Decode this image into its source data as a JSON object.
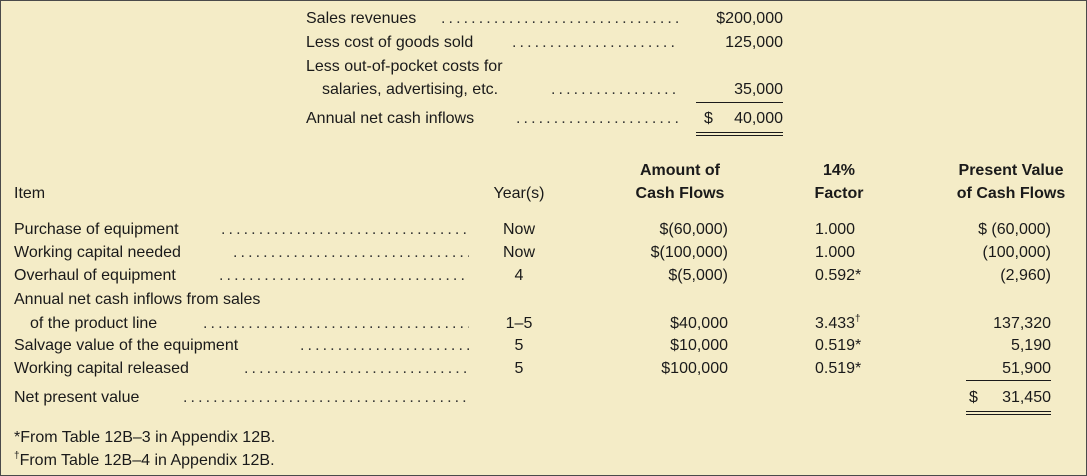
{
  "top": {
    "rows": [
      {
        "label": "Sales revenues",
        "value": "$200,000"
      },
      {
        "label": "Less cost of goods sold",
        "value": "125,000"
      },
      {
        "label": "Less out-of-pocket costs for",
        "label_cont": "salaries, advertising, etc.",
        "value": "35,000"
      },
      {
        "label": "Annual net cash inflows",
        "currency": "$",
        "value": "40,000"
      }
    ]
  },
  "table": {
    "headers": {
      "item": "Item",
      "years": "Year(s)",
      "amount_1": "Amount of",
      "amount_2": "Cash Flows",
      "factor_1": "14%",
      "factor_2": "Factor",
      "pv_1": "Present Value",
      "pv_2": "of Cash Flows"
    },
    "rows": [
      {
        "item": "Purchase of equipment",
        "years": "Now",
        "amount": "$(60,000)",
        "factor": "1.000",
        "pv": "$ (60,000)"
      },
      {
        "item": "Working capital needed",
        "years": "Now",
        "amount": "$(100,000)",
        "factor": "1.000",
        "pv": "(100,000)"
      },
      {
        "item": "Overhaul of equipment",
        "years": "4",
        "amount": "$(5,000)",
        "factor": "0.592",
        "factor_note": "*",
        "pv": "(2,960)"
      },
      {
        "item": "Annual net cash inflows from sales",
        "item_cont": "of the product line",
        "years": "1–5",
        "amount": "$40,000",
        "factor": "3.433",
        "factor_note": "†",
        "pv": "137,320"
      },
      {
        "item": "Salvage value of the equipment",
        "years": "5",
        "amount": "$10,000",
        "factor": "0.519",
        "factor_note": "*",
        "pv": "5,190"
      },
      {
        "item": "Working capital released",
        "years": "5",
        "amount": "$100,000",
        "factor": "0.519",
        "factor_note": "*",
        "pv": "51,900"
      }
    ],
    "total": {
      "item": "Net present value",
      "currency": "$",
      "pv": "31,450"
    }
  },
  "footnotes": [
    "*From Table 12B–3 in Appendix 12B.",
    {
      "mark": "†",
      "text": "From Table 12B–4 in Appendix 12B."
    }
  ]
}
